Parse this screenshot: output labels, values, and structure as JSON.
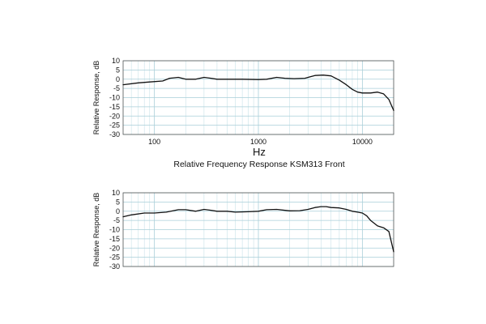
{
  "chart_data": [
    {
      "type": "line",
      "title": "Relative Frequency Response KSM313 Front",
      "xlabel": "Hz",
      "ylabel": "Relative Response, dB",
      "xscale": "log",
      "xlim": [
        50,
        20000
      ],
      "ylim": [
        -30,
        10
      ],
      "xticks": [
        "100",
        "1000",
        "10000"
      ],
      "yticks": [
        "10",
        "5",
        "0",
        "-5",
        "-10",
        "-15",
        "-20",
        "-25",
        "-30"
      ],
      "grid": true,
      "series": [
        {
          "x": [
            50,
            70,
            90,
            120,
            140,
            170,
            200,
            250,
            300,
            350,
            400,
            500,
            700,
            1000,
            1200,
            1500,
            1800,
            2200,
            2800,
            3500,
            4200,
            5000,
            6000,
            7000,
            8000,
            9000,
            10000,
            12000,
            14000,
            16000,
            18000,
            20000
          ],
          "y": [
            -3,
            -2,
            -1.5,
            -1,
            0.5,
            1,
            0,
            0,
            1,
            0.5,
            0,
            0,
            0,
            -0.2,
            0,
            1,
            0.5,
            0.3,
            0.5,
            2,
            2.2,
            1.8,
            -0.5,
            -3,
            -5.5,
            -7,
            -7.5,
            -7.5,
            -7,
            -8,
            -11,
            -17
          ]
        }
      ]
    },
    {
      "type": "line",
      "title": "",
      "xlabel": "",
      "ylabel": "Relative Response, dB",
      "xscale": "log",
      "xlim": [
        50,
        20000
      ],
      "ylim": [
        -30,
        10
      ],
      "yticks": [
        "10",
        "5",
        "0",
        "-5",
        "-10",
        "-15",
        "-20",
        "-25",
        "-30"
      ],
      "grid": true,
      "series": [
        {
          "x": [
            50,
            60,
            80,
            100,
            130,
            170,
            200,
            250,
            300,
            350,
            400,
            500,
            600,
            800,
            1000,
            1200,
            1500,
            2000,
            2500,
            3000,
            3500,
            4000,
            4500,
            5000,
            6000,
            7000,
            8000,
            9000,
            10000,
            11000,
            12000,
            14000,
            16000,
            18000,
            20000
          ],
          "y": [
            -3,
            -2,
            -1,
            -1,
            -0.5,
            0.8,
            0.8,
            0,
            1,
            0.5,
            0,
            0,
            -0.5,
            -0.3,
            0,
            0.8,
            1,
            0.2,
            0.3,
            1,
            2,
            2.5,
            2.5,
            2,
            1.8,
            1,
            0,
            -0.5,
            -1,
            -2.5,
            -5,
            -8,
            -9,
            -11,
            -22
          ]
        }
      ]
    }
  ]
}
